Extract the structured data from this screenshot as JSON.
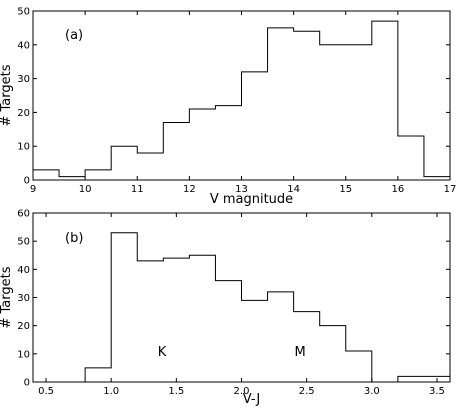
{
  "chart_data": [
    {
      "type": "histogram",
      "panel_label": "(a)",
      "xlabel": "V magnitude",
      "ylabel": "# Targets",
      "xlim": [
        9,
        17
      ],
      "ylim": [
        0,
        50
      ],
      "xticks": [
        "9",
        "10",
        "11",
        "12",
        "13",
        "14",
        "15",
        "16",
        "17"
      ],
      "yticks": [
        "0",
        "10",
        "20",
        "30",
        "40",
        "50"
      ],
      "bin_edges": [
        9,
        9.5,
        10,
        10.5,
        11,
        11.5,
        12,
        12.5,
        13,
        13.5,
        14,
        14.5,
        15,
        15.5,
        16,
        16.5,
        17
      ],
      "counts": [
        3,
        1,
        3,
        10,
        8,
        17,
        21,
        22,
        32,
        45,
        44,
        40,
        40,
        47,
        13,
        1
      ],
      "annotations": []
    },
    {
      "type": "histogram",
      "panel_label": "(b)",
      "xlabel": "V-J",
      "ylabel": "# Targets",
      "xlim": [
        0.4,
        3.6
      ],
      "ylim": [
        0,
        60
      ],
      "xticks": [
        "0.5",
        "1.0",
        "1.5",
        "2.0",
        "2.5",
        "3.0",
        "3.5"
      ],
      "yticks": [
        "0",
        "10",
        "20",
        "30",
        "40",
        "50",
        "60"
      ],
      "bin_edges": [
        0.4,
        0.6,
        0.8,
        1.0,
        1.2,
        1.4,
        1.6,
        1.8,
        2.0,
        2.2,
        2.4,
        2.6,
        2.8,
        3.0,
        3.2,
        3.4,
        3.6
      ],
      "counts": [
        0,
        0,
        5,
        53,
        43,
        44,
        45,
        36,
        29,
        32,
        25,
        20,
        11,
        0,
        2,
        2
      ],
      "annotations": [
        {
          "text": "K",
          "x": 1.39,
          "y": 11
        },
        {
          "text": "M",
          "x": 2.45,
          "y": 11
        }
      ]
    }
  ]
}
